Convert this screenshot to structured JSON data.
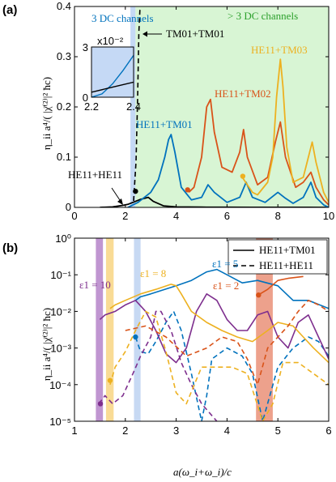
{
  "chart_data": [
    {
      "panel": "(a)",
      "type": "line",
      "xlim": [
        0,
        10
      ],
      "ylim": [
        0,
        0.4
      ],
      "xticks": [
        "0",
        "2",
        "4",
        "6",
        "8",
        "10"
      ],
      "yticks": [
        "0",
        "0.1",
        "0.2",
        "0.3",
        "0.4"
      ],
      "ylabel": "η_ii a⁴/( |χ̄⁽²⁾|² ħc)",
      "regions": [
        {
          "label": "3 DC channels",
          "x": [
            2.2,
            2.4
          ],
          "color": "#c5d9f5"
        },
        {
          "label": "> 3 DC channels",
          "x": [
            2.4,
            10
          ],
          "color": "#d8f5d4"
        }
      ],
      "series": [
        {
          "name": "HE11+HE11",
          "color": "#000000",
          "x": [
            1.0,
            1.5,
            1.9,
            2.1,
            2.3,
            2.6,
            2.9,
            3.1,
            3.5,
            4.0,
            5.0,
            6.0,
            7.0,
            8.0,
            9.0,
            10.0
          ],
          "y": [
            0,
            0.001,
            0.004,
            0.006,
            0.01,
            0.016,
            0.02,
            0.012,
            0.003,
            0.001,
            0.0005,
            0.0003,
            0.0002,
            0.0002,
            0.0001,
            0
          ]
        },
        {
          "name": "HE11+TM01",
          "color": "#0072bd",
          "x": [
            2.1,
            2.5,
            3.0,
            3.3,
            3.55,
            3.7,
            3.8,
            3.95,
            4.2,
            4.6,
            5.0,
            5.25,
            5.5,
            6.0,
            6.5,
            6.75,
            7.0,
            7.5,
            8.0,
            8.3,
            8.6,
            9.0,
            9.3,
            9.5,
            9.8,
            10.0
          ],
          "y": [
            0,
            0.01,
            0.03,
            0.055,
            0.1,
            0.135,
            0.145,
            0.11,
            0.04,
            0.015,
            0.02,
            0.045,
            0.03,
            0.01,
            0.02,
            0.05,
            0.02,
            0.01,
            0.03,
            0.018,
            0.008,
            0.02,
            0.05,
            0.02,
            0.005,
            0
          ]
        },
        {
          "name": "HE11+TM02",
          "color": "#d95319",
          "x": [
            4.5,
            4.7,
            5.0,
            5.2,
            5.35,
            5.5,
            5.8,
            6.2,
            6.5,
            6.65,
            6.8,
            7.2,
            7.6,
            7.9,
            8.1,
            8.3,
            8.7,
            9.0,
            9.3,
            9.5,
            9.8,
            10.0
          ],
          "y": [
            0.03,
            0.04,
            0.1,
            0.2,
            0.215,
            0.15,
            0.08,
            0.07,
            0.11,
            0.155,
            0.1,
            0.045,
            0.06,
            0.13,
            0.17,
            0.1,
            0.04,
            0.05,
            0.07,
            0.04,
            0.015,
            0.005
          ]
        },
        {
          "name": "HE11+TM03",
          "color": "#edb120",
          "x": [
            6.6,
            6.8,
            7.0,
            7.2,
            7.6,
            7.8,
            7.95,
            8.1,
            8.2,
            8.35,
            8.6,
            9.0,
            9.2,
            9.35,
            9.5,
            9.8,
            10.0
          ],
          "y": [
            0.06,
            0.045,
            0.03,
            0.025,
            0.05,
            0.1,
            0.22,
            0.295,
            0.24,
            0.12,
            0.05,
            0.06,
            0.1,
            0.13,
            0.09,
            0.03,
            0.01
          ]
        }
      ],
      "markers": [
        {
          "x": 2.4,
          "y": 0.032,
          "color": "#000000"
        },
        {
          "x": 4.45,
          "y": 0.035,
          "color": "#d95319"
        },
        {
          "x": 6.62,
          "y": 0.062,
          "color": "#edb120"
        }
      ],
      "annotations": {
        "region_3dc": "3 DC channels",
        "region_more": "> 3 DC channels",
        "arrow_label": "TM01+TM01",
        "he11_he11": "HE11+HE11",
        "he11_tm01": "HE11+TM01",
        "he11_tm02": "HE11+TM02",
        "he11_tm03": "HE11+TM03"
      },
      "inset": {
        "xlim": [
          2.2,
          2.4
        ],
        "ylim": [
          0,
          3
        ],
        "exponent": "x10⁻²",
        "xticks": [
          "2.2",
          "2.4"
        ],
        "yticks": [
          "0",
          "3"
        ],
        "series": [
          {
            "color": "#0072bd",
            "x": [
              2.2,
              2.25,
              2.3,
              2.35,
              2.4
            ],
            "y": [
              0.0,
              0.2,
              0.8,
              1.6,
              2.5
            ]
          },
          {
            "color": "#000000",
            "x": [
              2.2,
              2.3,
              2.4
            ],
            "y": [
              0.3,
              0.6,
              0.9
            ]
          }
        ]
      }
    },
    {
      "panel": "(b)",
      "type": "line",
      "yscale": "log",
      "xlim": [
        1,
        6
      ],
      "ylim": [
        1e-05,
        1
      ],
      "xticks": [
        "1",
        "2",
        "3",
        "4",
        "5",
        "6"
      ],
      "yticks": [
        "10⁰",
        "10⁻¹",
        "10⁻²",
        "10⁻³",
        "10⁻⁴",
        "10⁻⁵"
      ],
      "xlabel": "a(ω_i+ω_i)/c",
      "ylabel": "η_ii a⁴/( |χ̄⁽²⁾|² ħc)",
      "legend": {
        "position": "top-right",
        "entries": [
          {
            "label": "HE11+TM01",
            "style": "solid"
          },
          {
            "label": "HE11+HE11",
            "style": "dashed"
          }
        ]
      },
      "bands": [
        {
          "x": [
            1.42,
            1.56
          ],
          "color": "#b07cc6"
        },
        {
          "x": [
            1.62,
            1.77
          ],
          "color": "#f7d27a"
        },
        {
          "x": [
            2.17,
            2.3
          ],
          "color": "#b9d0f0"
        },
        {
          "x": [
            4.57,
            4.9
          ],
          "color": "#e98a6f"
        }
      ],
      "eps_labels": [
        {
          "text": "ε1 = 10",
          "color": "#7e2f8e"
        },
        {
          "text": "ε1 = 8",
          "color": "#edb120"
        },
        {
          "text": "ε1 = 5",
          "color": "#0072bd"
        },
        {
          "text": "ε1 = 2",
          "color": "#d95319"
        }
      ],
      "series": [
        {
          "name": "ε1=5 HE11+TM01",
          "color": "#0072bd",
          "style": "solid",
          "x": [
            2.2,
            2.3,
            2.5,
            3.0,
            3.3,
            3.6,
            3.8,
            4.0,
            4.3,
            4.6,
            5.0,
            5.3,
            5.6,
            6.0
          ],
          "y": [
            0.02,
            0.025,
            0.03,
            0.05,
            0.07,
            0.12,
            0.14,
            0.1,
            0.06,
            0.07,
            0.05,
            0.02,
            0.02,
            0.012
          ]
        },
        {
          "name": "ε1=5 HE11+HE11",
          "color": "#0072bd",
          "style": "dashed",
          "x": [
            2.2,
            2.3,
            2.45,
            2.6,
            2.8,
            2.95,
            3.1,
            3.3,
            3.5,
            3.6,
            3.7,
            4.0,
            4.3,
            4.5,
            4.7,
            5.0,
            5.3,
            5.6,
            5.8,
            6.0
          ],
          "y": [
            0.002,
            0.0008,
            0.0007,
            0.0015,
            0.005,
            0.01,
            0.003,
            0.0002,
            1e-05,
            5e-05,
            0.0005,
            0.001,
            0.0006,
            0.0002,
            1e-05,
            0.0003,
            0.001,
            0.002,
            0.0015,
            0.0006
          ]
        },
        {
          "name": "ε1=10 HE11+TM01",
          "color": "#7e2f8e",
          "style": "solid",
          "x": [
            1.5,
            1.6,
            1.8,
            2.0,
            2.2,
            2.4,
            2.6,
            2.8,
            3.0,
            3.2,
            3.4,
            3.6,
            3.8,
            4.0,
            4.2,
            4.4,
            4.6,
            4.8,
            5.0,
            5.2,
            5.4,
            5.6,
            5.8,
            6.0
          ],
          "y": [
            0.006,
            0.008,
            0.01,
            0.015,
            0.02,
            0.01,
            0.003,
            0.0007,
            0.0004,
            0.001,
            0.01,
            0.03,
            0.02,
            0.006,
            0.003,
            0.003,
            0.008,
            0.01,
            0.002,
            0.001,
            0.005,
            0.008,
            0.002,
            0.0005
          ]
        },
        {
          "name": "ε1=10 HE11+HE11",
          "color": "#7e2f8e",
          "style": "dashed",
          "x": [
            1.48,
            1.6,
            1.75,
            1.95,
            2.15,
            2.3,
            2.5,
            2.6,
            2.7,
            2.9,
            3.1,
            3.3,
            3.5,
            3.8
          ],
          "y": [
            3e-05,
            5e-05,
            3e-05,
            5e-05,
            0.0002,
            0.0006,
            0.002,
            0.01,
            0.01,
            0.003,
            0.0004,
            0.0001,
            3e-05,
            1e-05
          ]
        },
        {
          "name": "ε1=8 HE11+TM01",
          "color": "#edb120",
          "style": "solid",
          "x": [
            1.7,
            1.8,
            2.0,
            2.3,
            2.6,
            2.9,
            3.0,
            3.1,
            3.3,
            3.6,
            3.9,
            4.2,
            4.5,
            4.8,
            5.0,
            5.3,
            5.5,
            5.7,
            6.0
          ],
          "y": [
            0.012,
            0.015,
            0.02,
            0.03,
            0.04,
            0.055,
            0.05,
            0.03,
            0.01,
            0.005,
            0.003,
            0.002,
            0.0015,
            0.003,
            0.005,
            0.004,
            0.002,
            0.001,
            0.0004
          ]
        },
        {
          "name": "ε1=8 HE11+HE11",
          "color": "#edb120",
          "style": "dashed",
          "x": [
            1.7,
            1.8,
            2.0,
            2.2,
            2.4,
            2.6,
            2.8,
            3.0,
            3.2,
            3.5,
            3.8,
            4.1,
            4.4,
            4.7,
            4.9,
            5.1,
            5.4,
            5.7,
            6.0
          ],
          "y": [
            0.0001,
            0.0003,
            0.0008,
            0.003,
            0.01,
            0.007,
            0.0008,
            6e-05,
            3e-05,
            0.0003,
            0.0003,
            0.0003,
            0.0002,
            1e-05,
            3e-05,
            0.0004,
            0.0004,
            0.0002,
            0.0001
          ]
        },
        {
          "name": "ε1=2 HE11+TM01",
          "color": "#d95319",
          "style": "solid",
          "x": [
            4.65,
            4.8,
            5.0,
            5.2,
            5.5
          ],
          "y": [
            0.03,
            0.04,
            0.07,
            0.08,
            0.09
          ]
        },
        {
          "name": "ε1=2 HE11+HE11",
          "color": "#d95319",
          "style": "dashed",
          "x": [
            2.0,
            2.4,
            2.8,
            3.2,
            3.6,
            3.9,
            4.2,
            4.4,
            4.6,
            4.8,
            5.0,
            5.2,
            5.4,
            5.6,
            5.8,
            6.0
          ],
          "y": [
            0.003,
            0.004,
            0.002,
            0.0006,
            0.001,
            0.002,
            0.0015,
            0.0005,
            0.0001,
            0.001,
            0.002,
            0.004,
            0.01,
            0.02,
            0.015,
            0.01
          ]
        }
      ],
      "markers": [
        {
          "x": 1.51,
          "y": 3e-05,
          "color": "#7e2f8e"
        },
        {
          "x": 1.7,
          "y": 0.00013,
          "color": "#edb120"
        },
        {
          "x": 2.2,
          "y": 0.002,
          "color": "#0072bd"
        },
        {
          "x": 4.62,
          "y": 0.028,
          "color": "#d95319"
        }
      ]
    }
  ]
}
